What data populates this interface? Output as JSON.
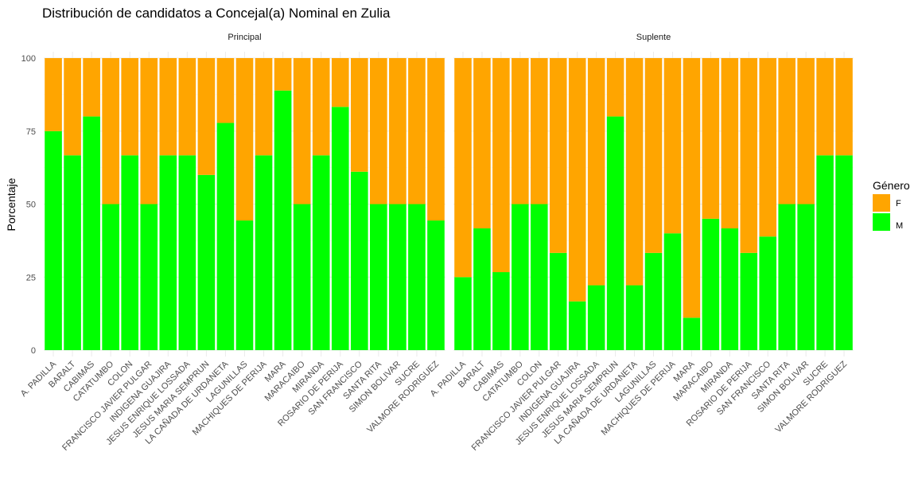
{
  "title": "Distribución de candidatos a Concejal(a) Nominal en Zulia",
  "ylabel": "Porcentaje",
  "legend": {
    "title": "Género",
    "items": [
      {
        "label": "F",
        "color": "#FFA500"
      },
      {
        "label": "M",
        "color": "#00FF00"
      }
    ]
  },
  "chart_data": {
    "type": "bar",
    "stacked": true,
    "ylim": [
      0,
      100
    ],
    "yticks": [
      "0",
      "25",
      "50",
      "75",
      "100"
    ],
    "grid": true,
    "legend_position": "right",
    "categories": [
      "A. PADILLA",
      "BARALT",
      "CABIMAS",
      "CATATUMBO",
      "COLON",
      "FRANCISCO JAVIER PULGAR",
      "INDIGENA GUAJIRA",
      "JESUS ENRIQUE LOSSADA",
      "JESUS MARIA SEMPRUN",
      "LA CAÑADA DE URDANETA",
      "LAGUNILLAS",
      "MACHIQUES DE PERIJA",
      "MARA",
      "MARACAIBO",
      "MIRANDA",
      "ROSARIO DE PERIJA",
      "SAN FRANCISCO",
      "SANTA RITA",
      "SIMON BOLIVAR",
      "SUCRE",
      "VALMORE RODRIGUEZ"
    ],
    "panels": [
      {
        "strip": "Principal",
        "series": [
          {
            "name": "M",
            "values": [
              75,
              66.7,
              80,
              50,
              66.7,
              50,
              66.7,
              66.7,
              60,
              77.8,
              44.4,
              66.7,
              88.9,
              50,
              66.7,
              83.3,
              61.1,
              50,
              50,
              50,
              44.4
            ]
          },
          {
            "name": "F",
            "values": [
              25,
              33.3,
              20,
              50,
              33.3,
              50,
              33.3,
              33.3,
              40,
              22.2,
              55.6,
              33.3,
              11.1,
              50,
              33.3,
              16.7,
              38.9,
              50,
              50,
              50,
              55.6
            ]
          }
        ]
      },
      {
        "strip": "Suplente",
        "series": [
          {
            "name": "M",
            "values": [
              25,
              41.7,
              26.7,
              50,
              50,
              33.3,
              16.7,
              22.2,
              80,
              22.2,
              33.3,
              40,
              11.1,
              45,
              41.7,
              33.3,
              38.9,
              50,
              50,
              66.7,
              66.7
            ]
          },
          {
            "name": "F",
            "values": [
              75,
              58.3,
              73.3,
              50,
              50,
              66.7,
              83.3,
              77.8,
              20,
              77.8,
              66.7,
              60,
              88.9,
              55,
              58.3,
              66.7,
              61.1,
              50,
              50,
              33.3,
              33.3
            ]
          }
        ]
      }
    ]
  }
}
